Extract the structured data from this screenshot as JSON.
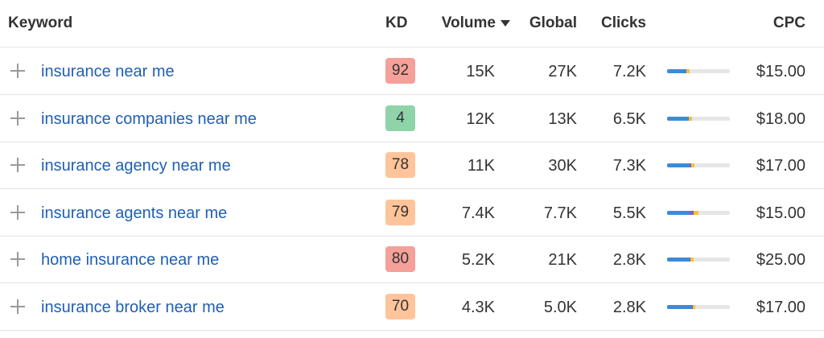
{
  "header": {
    "keyword": "Keyword",
    "kd": "KD",
    "volume": "Volume",
    "global": "Global",
    "clicks": "Clicks",
    "cpc": "CPC"
  },
  "colors": {
    "kd_red": "#f6a09a",
    "kd_green": "#8fd4a8",
    "kd_orange": "#ffc49a",
    "bar_blue": "#3d8ad8",
    "bar_purple": "#8a5cc2",
    "bar_yellow": "#f4c430",
    "bar_track": "#e6e6e6"
  },
  "rows": [
    {
      "keyword": "insurance near me",
      "kd": "92",
      "kd_level": "red",
      "volume": "15K",
      "global": "27K",
      "clicks": "7.2K",
      "cpc": "$15.00",
      "clicks_split": {
        "blue": 0.3,
        "purple": 0.01,
        "yellow": 0.05
      }
    },
    {
      "keyword": "insurance companies near me",
      "kd": "4",
      "kd_level": "green",
      "volume": "12K",
      "global": "13K",
      "clicks": "6.5K",
      "cpc": "$18.00",
      "clicks_split": {
        "blue": 0.34,
        "purple": 0.01,
        "yellow": 0.05
      }
    },
    {
      "keyword": "insurance agency near me",
      "kd": "78",
      "kd_level": "orange",
      "volume": "11K",
      "global": "30K",
      "clicks": "7.3K",
      "cpc": "$17.00",
      "clicks_split": {
        "blue": 0.36,
        "purple": 0.03,
        "yellow": 0.04
      }
    },
    {
      "keyword": "insurance agents near me",
      "kd": "79",
      "kd_level": "orange",
      "volume": "7.4K",
      "global": "7.7K",
      "clicks": "5.5K",
      "cpc": "$15.00",
      "clicks_split": {
        "blue": 0.36,
        "purple": 0.06,
        "yellow": 0.08
      }
    },
    {
      "keyword": "home insurance near me",
      "kd": "80",
      "kd_level": "red",
      "volume": "5.2K",
      "global": "21K",
      "clicks": "2.8K",
      "cpc": "$25.00",
      "clicks_split": {
        "blue": 0.36,
        "purple": 0.01,
        "yellow": 0.05
      }
    },
    {
      "keyword": "insurance broker near me",
      "kd": "70",
      "kd_level": "orange",
      "volume": "4.3K",
      "global": "5.0K",
      "clicks": "2.8K",
      "cpc": "$17.00",
      "clicks_split": {
        "blue": 0.4,
        "purple": 0.01,
        "yellow": 0.04
      }
    }
  ]
}
